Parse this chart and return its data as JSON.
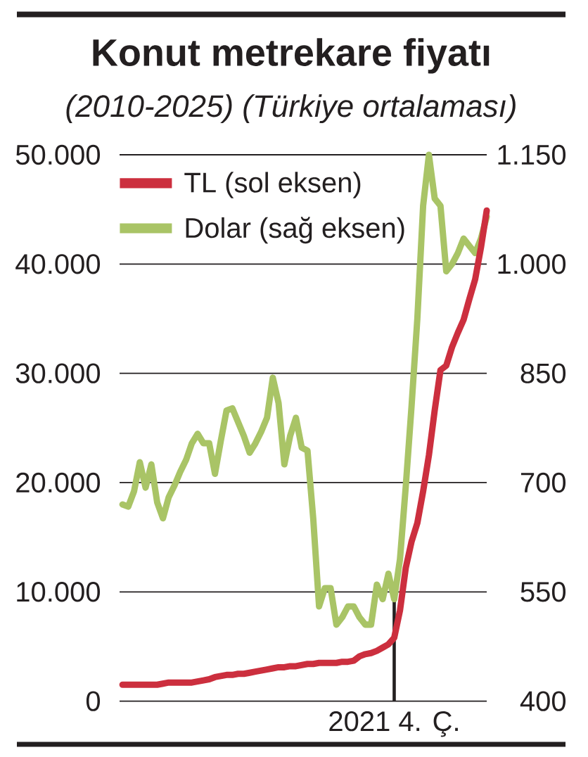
{
  "chart_data": {
    "type": "line",
    "title": "Konut metrekare fiyatı",
    "subtitle": "(2010-2025) (Türkiye ortalaması)",
    "categories": [
      null,
      null,
      null,
      null,
      null,
      null,
      null,
      null,
      null,
      null,
      null,
      null,
      null,
      null,
      null,
      null,
      null,
      null,
      null,
      null,
      null,
      null,
      null,
      null,
      null,
      null,
      null,
      null,
      null,
      null,
      null,
      null,
      null,
      null,
      null,
      null,
      null,
      null,
      null,
      null,
      null,
      null,
      null,
      null,
      null,
      null,
      null,
      "2021 4. Ç.",
      null,
      null,
      null,
      null,
      null,
      null,
      null,
      null,
      null,
      null,
      null,
      null,
      null,
      null,
      null,
      null
    ],
    "series": [
      {
        "name": "TL (sol eksen)",
        "color": "#cc2f3e",
        "values": [
          1500,
          1500,
          1500,
          1500,
          1500,
          1500,
          1500,
          1600,
          1700,
          1700,
          1700,
          1700,
          1700,
          1800,
          1900,
          2000,
          2200,
          2300,
          2400,
          2400,
          2500,
          2500,
          2600,
          2700,
          2800,
          2900,
          3000,
          3100,
          3100,
          3200,
          3200,
          3300,
          3400,
          3400,
          3500,
          3500,
          3500,
          3500,
          3600,
          3600,
          3700,
          4100,
          4300,
          4400,
          4600,
          4900,
          5200,
          5800,
          8300,
          12200,
          14600,
          16300,
          19200,
          22500,
          26600,
          30300,
          30700,
          32400,
          33700,
          34900,
          36800,
          38600,
          41500,
          44900
        ]
      },
      {
        "name": "Dolar (sağ eksen)",
        "color": "#a9c466",
        "axis": "y2",
        "values": [
          670,
          667,
          688,
          728,
          693,
          725,
          673,
          651,
          680,
          696,
          715,
          731,
          754,
          767,
          754,
          754,
          712,
          757,
          799,
          802,
          783,
          764,
          741,
          754,
          770,
          789,
          844,
          809,
          725,
          764,
          789,
          748,
          744,
          650,
          530,
          555,
          555,
          505,
          515,
          530,
          530,
          515,
          505,
          505,
          560,
          540,
          575,
          540,
          595,
          695,
          805,
          925,
          1080,
          1150,
          1090,
          1080,
          990,
          1000,
          1015,
          1035,
          1025,
          1015,
          1035,
          1065
        ]
      }
    ],
    "ylim": [
      0,
      50000
    ],
    "yticks": [
      0,
      {
        "value": 10000,
        "label": "10.000"
      },
      {
        "value": 20000,
        "label": "20.000"
      },
      {
        "value": 30000,
        "label": "30.000"
      },
      {
        "value": 40000,
        "label": "40.000"
      },
      {
        "value": 50000,
        "label": "50.000"
      }
    ],
    "y2lim": [
      400,
      1150
    ],
    "y2ticks": [
      400,
      550,
      700,
      850,
      {
        "value": 1000,
        "label": "1.000"
      },
      {
        "value": 1150,
        "label": "1.150"
      }
    ],
    "ref_lines": [
      {
        "axis": "x",
        "value": "2021 4. Ç.",
        "color": "#231f20"
      }
    ],
    "grid": "y",
    "legend": "top left"
  }
}
